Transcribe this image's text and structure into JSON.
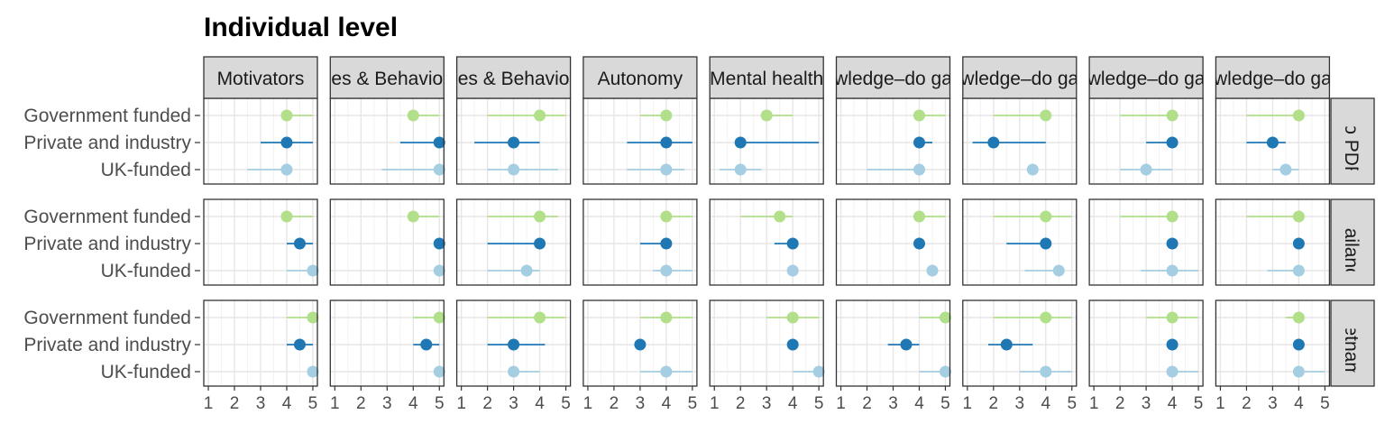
{
  "chart_data": {
    "type": "scatter",
    "title": "Individual level",
    "facet_columns": [
      "Motivators",
      "es & Behavio",
      "es & Behavio",
      "Autonomy",
      "Mental health",
      "wledge–do ga",
      "wledge–do ga",
      "wledge–do ga",
      "wledge–do ga"
    ],
    "facet_rows": [
      "Lao PDR",
      "Thailand",
      "Vietnam"
    ],
    "categories": [
      "Government funded",
      "Private and industry",
      "UK-funded"
    ],
    "xlim": [
      1,
      5
    ],
    "x_ticks": [
      "1",
      "2",
      "3",
      "4",
      "5"
    ],
    "grid": true,
    "colors": {
      "Government funded": "#b2df8a",
      "Private and industry": "#1f78b4",
      "UK-funded": "#a6cee3"
    },
    "series": [
      {
        "category": "Government funded",
        "point": [
          [
            4,
            4,
            4,
            4,
            3,
            4,
            4,
            4,
            4
          ],
          [
            4,
            4,
            4,
            4,
            3.5,
            4,
            4,
            4,
            4
          ],
          [
            5,
            5,
            4,
            4,
            4,
            5,
            4,
            4,
            4
          ]
        ],
        "low": [
          [
            4,
            4,
            2,
            3,
            3,
            4,
            2,
            2,
            2
          ],
          [
            4,
            4,
            2,
            4,
            2,
            4,
            2,
            2,
            2
          ],
          [
            4,
            4,
            2,
            3,
            3,
            4,
            2,
            3,
            3.5
          ]
        ],
        "high": [
          [
            5,
            5,
            5,
            4,
            4,
            5,
            4,
            4,
            4
          ],
          [
            5,
            5,
            4.7,
            5,
            4,
            5,
            5,
            4,
            4
          ],
          [
            5,
            5,
            5,
            5,
            5,
            5,
            5,
            5,
            4
          ]
        ]
      },
      {
        "category": "Private and industry",
        "point": [
          [
            4,
            5,
            3,
            4,
            2,
            4,
            2,
            4,
            3
          ],
          [
            4.5,
            5,
            4,
            4,
            4,
            4,
            4,
            4,
            4
          ],
          [
            4.5,
            4.5,
            3,
            3,
            4,
            3.5,
            2.5,
            4,
            4
          ]
        ],
        "low": [
          [
            3,
            3.5,
            1.5,
            2.5,
            2,
            4,
            1.2,
            3,
            2
          ],
          [
            4,
            5,
            2,
            3,
            3.3,
            4,
            2.5,
            4,
            4
          ],
          [
            4,
            4,
            2,
            3,
            4,
            2.8,
            1.8,
            4,
            4
          ]
        ],
        "high": [
          [
            5,
            5,
            4,
            5,
            5,
            4.5,
            4,
            4,
            3.5
          ],
          [
            5,
            5,
            4,
            4,
            4,
            4,
            4,
            4,
            4
          ],
          [
            5,
            5,
            4.2,
            3,
            4,
            4,
            3.5,
            4,
            4
          ]
        ]
      },
      {
        "category": "UK-funded",
        "point": [
          [
            4,
            5,
            3,
            4,
            2,
            4,
            3.5,
            3,
            3.5
          ],
          [
            5,
            5,
            3.5,
            4,
            4,
            4.5,
            4.5,
            4,
            4
          ],
          [
            5,
            5,
            3,
            4,
            5,
            5,
            4,
            4,
            4
          ]
        ],
        "low": [
          [
            2.5,
            2.8,
            2,
            2.5,
            1.2,
            2,
            3.3,
            2,
            3
          ],
          [
            4,
            5,
            2,
            3.5,
            4,
            4.3,
            3.2,
            2.8,
            2.8
          ],
          [
            5,
            5,
            3,
            3,
            4,
            4,
            3,
            4,
            4
          ]
        ],
        "high": [
          [
            4,
            5,
            4.7,
            4.7,
            2.8,
            4,
            3.5,
            4,
            4
          ],
          [
            5,
            5,
            4,
            5,
            4,
            4.7,
            4.7,
            5,
            4
          ],
          [
            5,
            5,
            4,
            5,
            5,
            5,
            5,
            5,
            5
          ]
        ]
      }
    ]
  }
}
